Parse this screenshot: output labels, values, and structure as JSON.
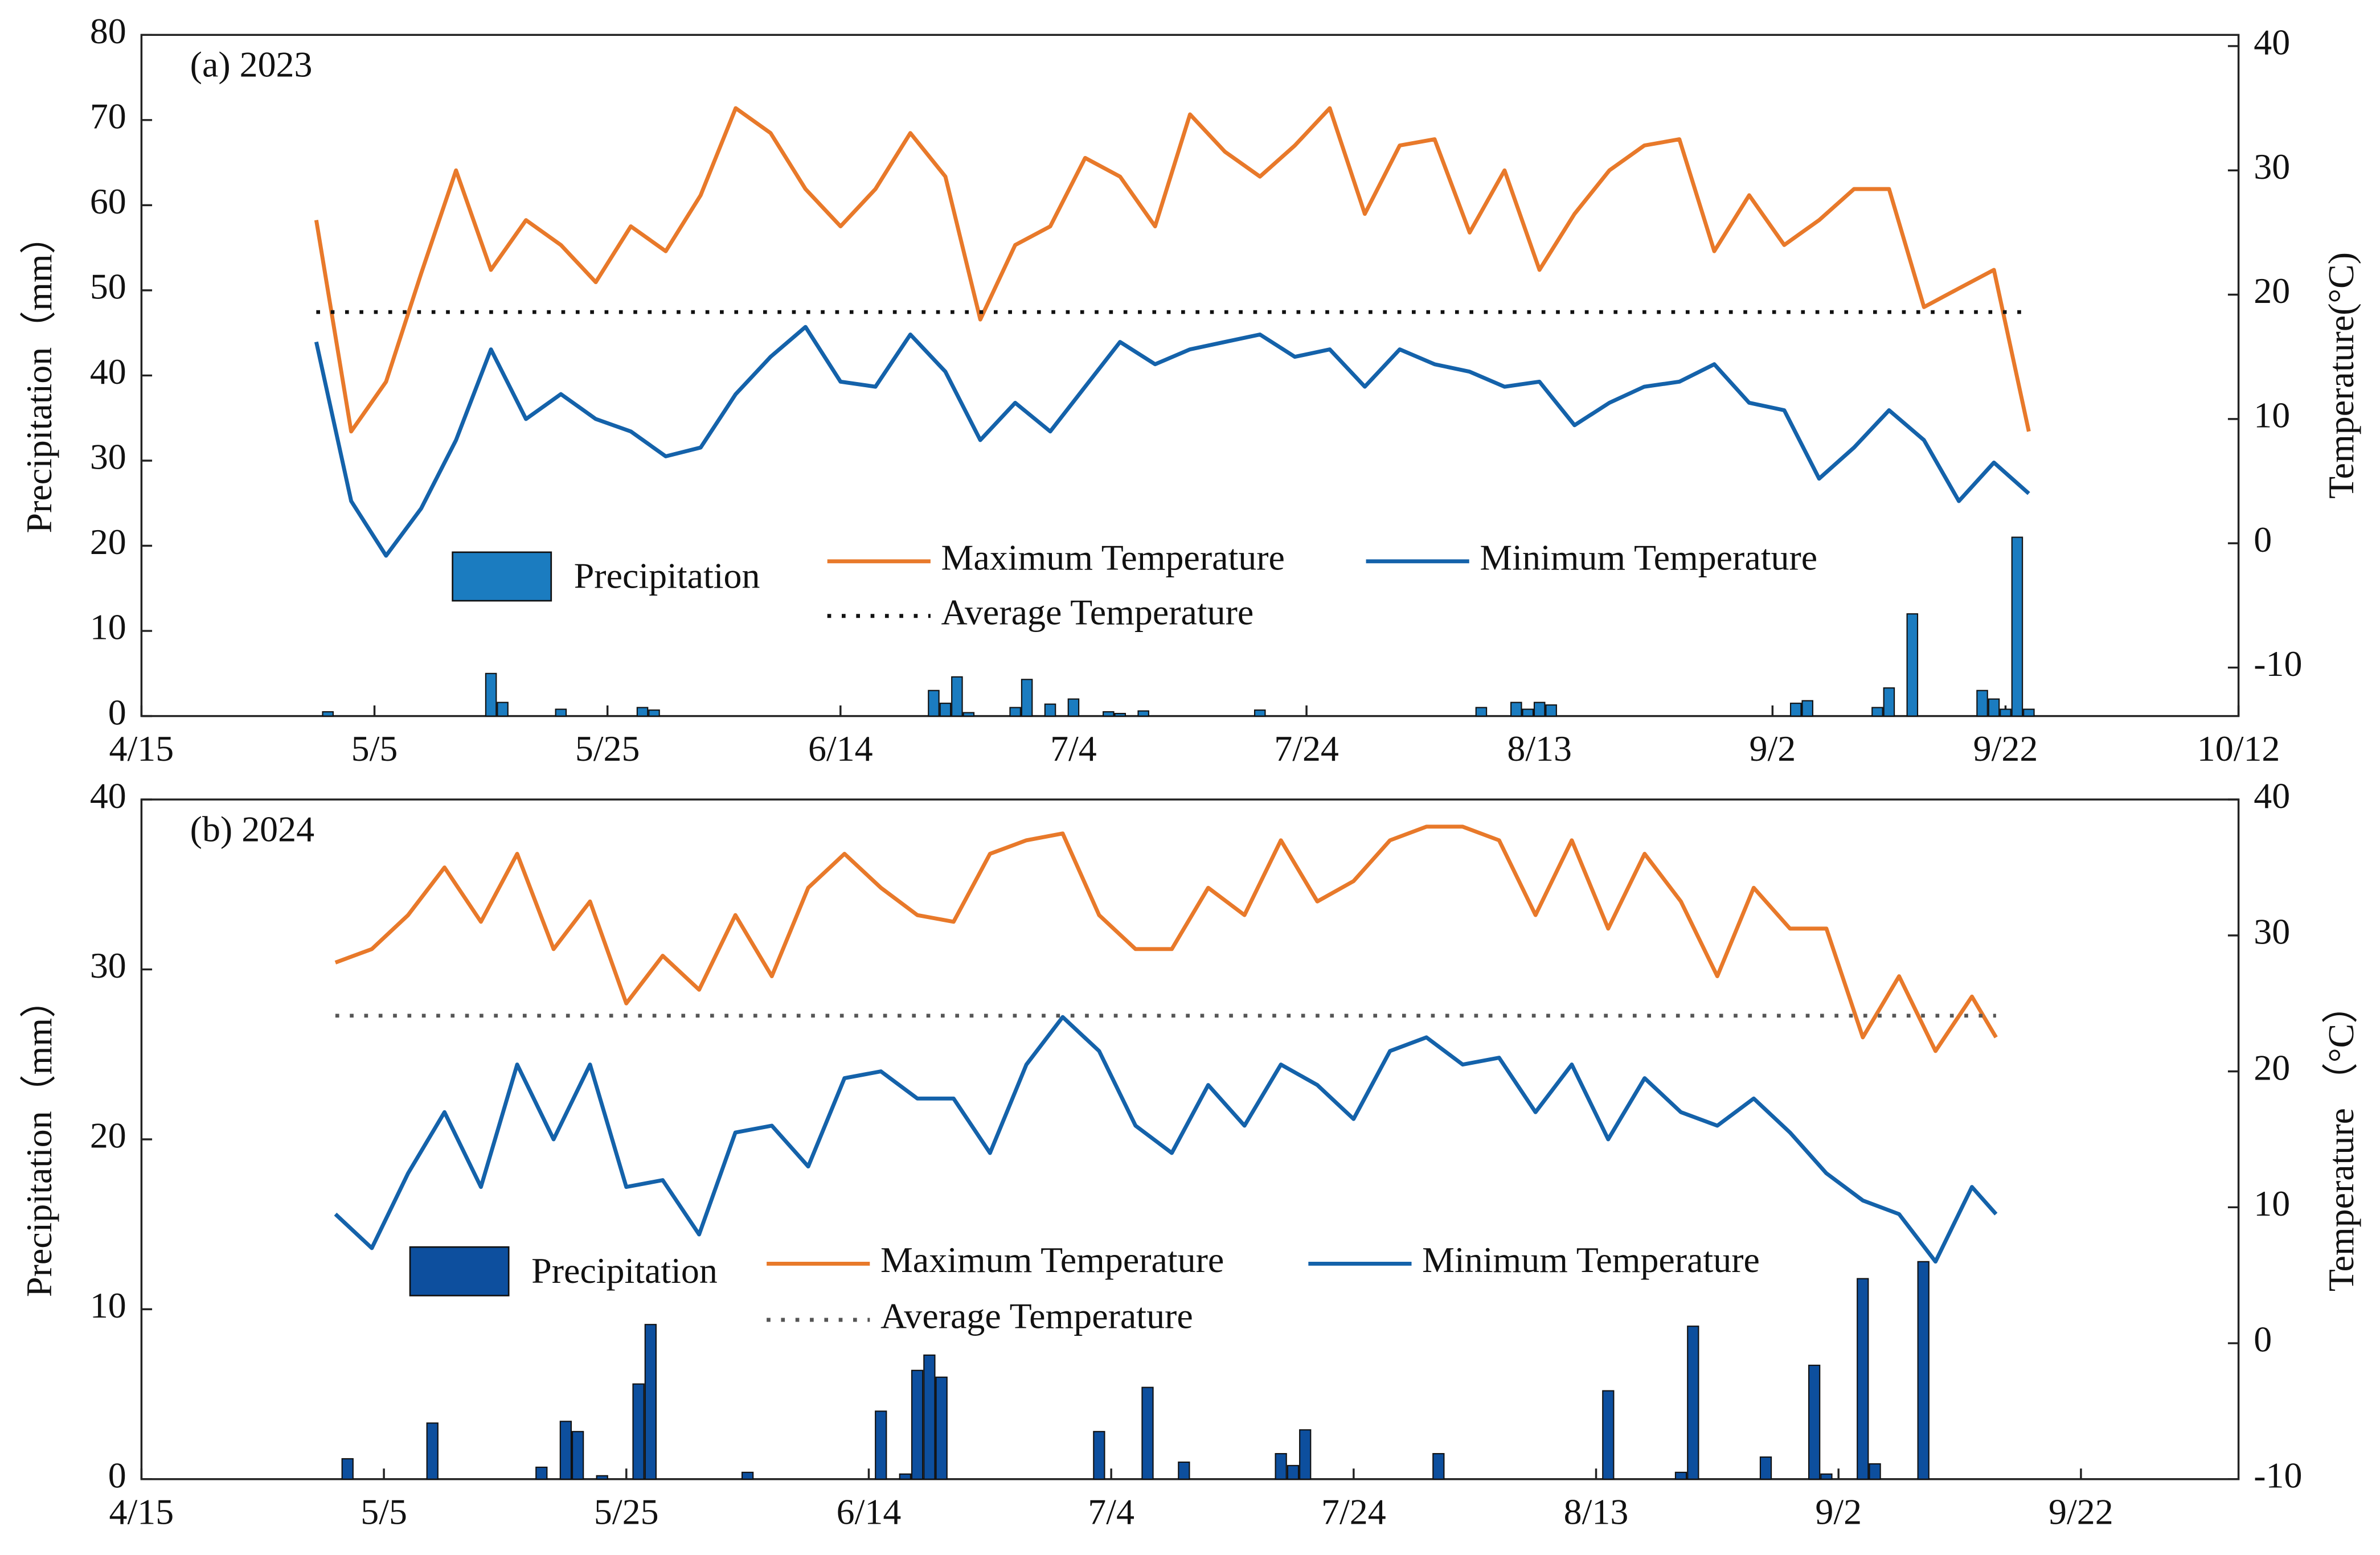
{
  "chart_data": [
    {
      "type": "bar-line",
      "title": "(a) 2023",
      "xlim": [
        "4/15",
        "10/12"
      ],
      "xticks": [
        "4/15",
        "5/5",
        "5/25",
        "6/14",
        "7/4",
        "7/24",
        "8/13",
        "9/2",
        "9/22",
        "10/12"
      ],
      "ylim": [
        0,
        80
      ],
      "yticks": [
        0,
        10,
        20,
        30,
        40,
        50,
        60,
        70,
        80
      ],
      "ylabel": "Precipitation（mm）",
      "y2lim": [
        -13.9,
        40.9
      ],
      "y2ticks": [
        -10,
        0,
        10,
        20,
        30,
        40
      ],
      "y2label": "Temperature(°C)",
      "series": [
        {
          "name": "Precipitation",
          "type": "bar",
          "color": "#1b7cc0",
          "x": [
            "5/1",
            "5/15",
            "5/16",
            "5/21",
            "5/28",
            "5/29",
            "6/22",
            "6/23",
            "6/24",
            "6/25",
            "6/29",
            "6/30",
            "7/2",
            "7/4",
            "7/7",
            "7/8",
            "7/10",
            "7/20",
            "8/8",
            "8/11",
            "8/12",
            "8/13",
            "8/14",
            "9/4",
            "9/5",
            "9/11",
            "9/12",
            "9/14",
            "9/20",
            "9/21",
            "9/22",
            "9/23",
            "9/24"
          ],
          "values": [
            0.5,
            5,
            1.6,
            0.8,
            1,
            0.7,
            3,
            1.5,
            4.6,
            0.4,
            1,
            4.3,
            1.4,
            2,
            0.5,
            0.3,
            0.6,
            0.7,
            1,
            1.6,
            0.8,
            1.6,
            1.3,
            1.5,
            1.8,
            1,
            3.3,
            12,
            3,
            2,
            0.8,
            21,
            0.8
          ]
        },
        {
          "name": "Maximum Temperature",
          "type": "line",
          "axis": "y2",
          "color": "#e8792a",
          "x": [
            "4/30",
            "5/3",
            "5/6",
            "5/9",
            "5/12",
            "5/15",
            "5/18",
            "5/21",
            "5/24",
            "5/27",
            "5/30",
            "6/2",
            "6/5",
            "6/8",
            "6/11",
            "6/14",
            "6/17",
            "6/20",
            "6/23",
            "6/26",
            "6/29",
            "7/2",
            "7/5",
            "7/8",
            "7/11",
            "7/14",
            "7/17",
            "7/20",
            "7/23",
            "7/26",
            "7/29",
            "8/1",
            "8/4",
            "8/7",
            "8/10",
            "8/13",
            "8/16",
            "8/19",
            "8/22",
            "8/25",
            "8/28",
            "8/31",
            "9/3",
            "9/6",
            "9/9",
            "9/12",
            "9/15",
            "9/18",
            "9/21",
            "9/24"
          ],
          "values": [
            26,
            9,
            13,
            21.7,
            30,
            22,
            26,
            24,
            21,
            25.5,
            23.5,
            28,
            35,
            33,
            28.5,
            25.5,
            28.5,
            33,
            29.5,
            18,
            24,
            25.5,
            31,
            29.5,
            25.5,
            34.5,
            31.5,
            29.5,
            32,
            35,
            26.5,
            32,
            32.5,
            25,
            30,
            22,
            26.5,
            30,
            32,
            32.5,
            23.5,
            28,
            24,
            26,
            28.5,
            28.5,
            19,
            20.5,
            22,
            9
          ]
        },
        {
          "name": "Minimum Temperature",
          "type": "line",
          "axis": "y2",
          "color": "#1462aa",
          "x": [
            "4/30",
            "5/3",
            "5/6",
            "5/9",
            "5/12",
            "5/15",
            "5/18",
            "5/21",
            "5/24",
            "5/27",
            "5/30",
            "6/2",
            "6/5",
            "6/8",
            "6/11",
            "6/14",
            "6/17",
            "6/20",
            "6/23",
            "6/26",
            "6/29",
            "7/2",
            "7/5",
            "7/8",
            "7/11",
            "7/14",
            "7/17",
            "7/20",
            "7/23",
            "7/26",
            "7/29",
            "8/1",
            "8/4",
            "8/7",
            "8/10",
            "8/13",
            "8/16",
            "8/19",
            "8/22",
            "8/25",
            "8/28",
            "8/31",
            "9/3",
            "9/6",
            "9/9",
            "9/12",
            "9/15",
            "9/18",
            "9/21",
            "9/24"
          ],
          "values": [
            16.2,
            3.4,
            -1,
            2.8,
            8.3,
            15.6,
            10,
            12,
            10,
            9,
            7,
            7.7,
            12,
            15,
            17.4,
            13,
            12.6,
            16.8,
            13.8,
            8.3,
            11.3,
            9,
            12.6,
            16.2,
            14.4,
            15.6,
            16.2,
            16.8,
            15,
            15.6,
            12.6,
            15.6,
            14.4,
            13.8,
            12.6,
            13,
            9.5,
            11.3,
            12.6,
            13,
            14.4,
            11.3,
            10.7,
            5.2,
            7.7,
            10.7,
            8.3,
            3.4,
            6.5,
            4
          ]
        },
        {
          "name": "Average Temperature",
          "type": "line",
          "axis": "y2",
          "style": "dotted",
          "color": "#111111",
          "x": [
            "4/30",
            "9/24"
          ],
          "values": [
            18.6,
            18.6
          ]
        }
      ]
    },
    {
      "type": "bar-line",
      "title": "(b) 2024",
      "xlim": [
        "4/15",
        "10/5"
      ],
      "xticks": [
        "4/15",
        "5/5",
        "5/25",
        "6/14",
        "7/4",
        "7/24",
        "8/13",
        "9/2",
        "9/22"
      ],
      "ylim": [
        0,
        40
      ],
      "yticks": [
        0,
        10,
        20,
        30,
        40
      ],
      "ylabel": "Precipitation（mm）",
      "y2lim": [
        -10,
        40
      ],
      "y2ticks": [
        -10,
        0,
        10,
        20,
        30,
        40
      ],
      "y2label": "Temperature （°C）",
      "series": [
        {
          "name": "Precipitation",
          "type": "bar",
          "color": "#0d4f9e",
          "x": [
            "5/2",
            "5/9",
            "5/18",
            "5/20",
            "5/21",
            "5/23",
            "5/26",
            "5/27",
            "6/4",
            "6/15",
            "6/17",
            "6/18",
            "6/19",
            "6/20",
            "7/3",
            "7/7",
            "7/10",
            "7/18",
            "7/19",
            "7/20",
            "7/31",
            "8/14",
            "8/20",
            "8/21",
            "8/27",
            "8/31",
            "9/1",
            "9/4",
            "9/5",
            "9/9"
          ],
          "values": [
            1.2,
            3.3,
            0.7,
            3.4,
            2.8,
            0.2,
            5.6,
            9.1,
            0.4,
            4,
            0.3,
            6.4,
            7.3,
            6,
            2.8,
            5.4,
            1,
            1.5,
            0.8,
            2.9,
            1.5,
            5.2,
            0.4,
            9,
            1.3,
            6.7,
            0.3,
            11.8,
            0.9,
            12.8
          ]
        },
        {
          "name": "Maximum Temperature",
          "type": "line",
          "axis": "y2",
          "color": "#e8792a",
          "x": [
            "5/1",
            "5/4",
            "5/7",
            "5/10",
            "5/13",
            "5/16",
            "5/19",
            "5/22",
            "5/25",
            "5/28",
            "5/31",
            "6/3",
            "6/6",
            "6/9",
            "6/12",
            "6/15",
            "6/18",
            "6/21",
            "6/24",
            "6/27",
            "6/30",
            "7/3",
            "7/6",
            "7/9",
            "7/12",
            "7/15",
            "7/18",
            "7/21",
            "7/24",
            "7/27",
            "7/30",
            "8/2",
            "8/5",
            "8/8",
            "8/11",
            "8/14",
            "8/17",
            "8/20",
            "8/23",
            "8/26",
            "8/29",
            "9/1",
            "9/4",
            "9/7",
            "9/10",
            "9/13",
            "9/15"
          ],
          "values": [
            28,
            29,
            31.5,
            35,
            31,
            36,
            29,
            32.5,
            25,
            28.5,
            26,
            31.5,
            27,
            33.5,
            36,
            33.5,
            31.5,
            31,
            36,
            37,
            37.5,
            31.5,
            29,
            29,
            33.5,
            31.5,
            37,
            32.5,
            34,
            37,
            38,
            38,
            37,
            31.5,
            37,
            30.5,
            36,
            32.5,
            27,
            33.5,
            30.5,
            30.5,
            22.5,
            27,
            21.5,
            25.5,
            22.5
          ]
        },
        {
          "name": "Minimum Temperature",
          "type": "line",
          "axis": "y2",
          "color": "#1462aa",
          "x": [
            "5/1",
            "5/4",
            "5/7",
            "5/10",
            "5/13",
            "5/16",
            "5/19",
            "5/22",
            "5/25",
            "5/28",
            "5/31",
            "6/3",
            "6/6",
            "6/9",
            "6/12",
            "6/15",
            "6/18",
            "6/21",
            "6/24",
            "6/27",
            "6/30",
            "7/3",
            "7/6",
            "7/9",
            "7/12",
            "7/15",
            "7/18",
            "7/21",
            "7/24",
            "7/27",
            "7/30",
            "8/2",
            "8/5",
            "8/8",
            "8/11",
            "8/14",
            "8/17",
            "8/20",
            "8/23",
            "8/26",
            "8/29",
            "9/1",
            "9/4",
            "9/7",
            "9/10",
            "9/13",
            "9/15"
          ],
          "values": [
            9.5,
            7,
            12.5,
            17,
            11.5,
            20.5,
            15,
            20.5,
            11.5,
            12,
            8,
            15.5,
            16,
            13,
            19.5,
            20,
            18,
            18,
            14,
            20.5,
            24,
            21.5,
            16,
            14,
            19,
            16,
            20.5,
            19,
            16.5,
            21.5,
            22.5,
            20.5,
            21,
            17,
            20.5,
            15,
            19.5,
            17,
            16,
            18,
            15.5,
            12.5,
            10.5,
            9.5,
            6,
            11.5,
            9.5
          ]
        },
        {
          "name": "Average Temperature",
          "type": "line",
          "axis": "y2",
          "style": "dotted",
          "color": "#555555",
          "x": [
            "5/1",
            "9/15"
          ],
          "values": [
            24.1,
            24.1
          ]
        }
      ]
    }
  ]
}
